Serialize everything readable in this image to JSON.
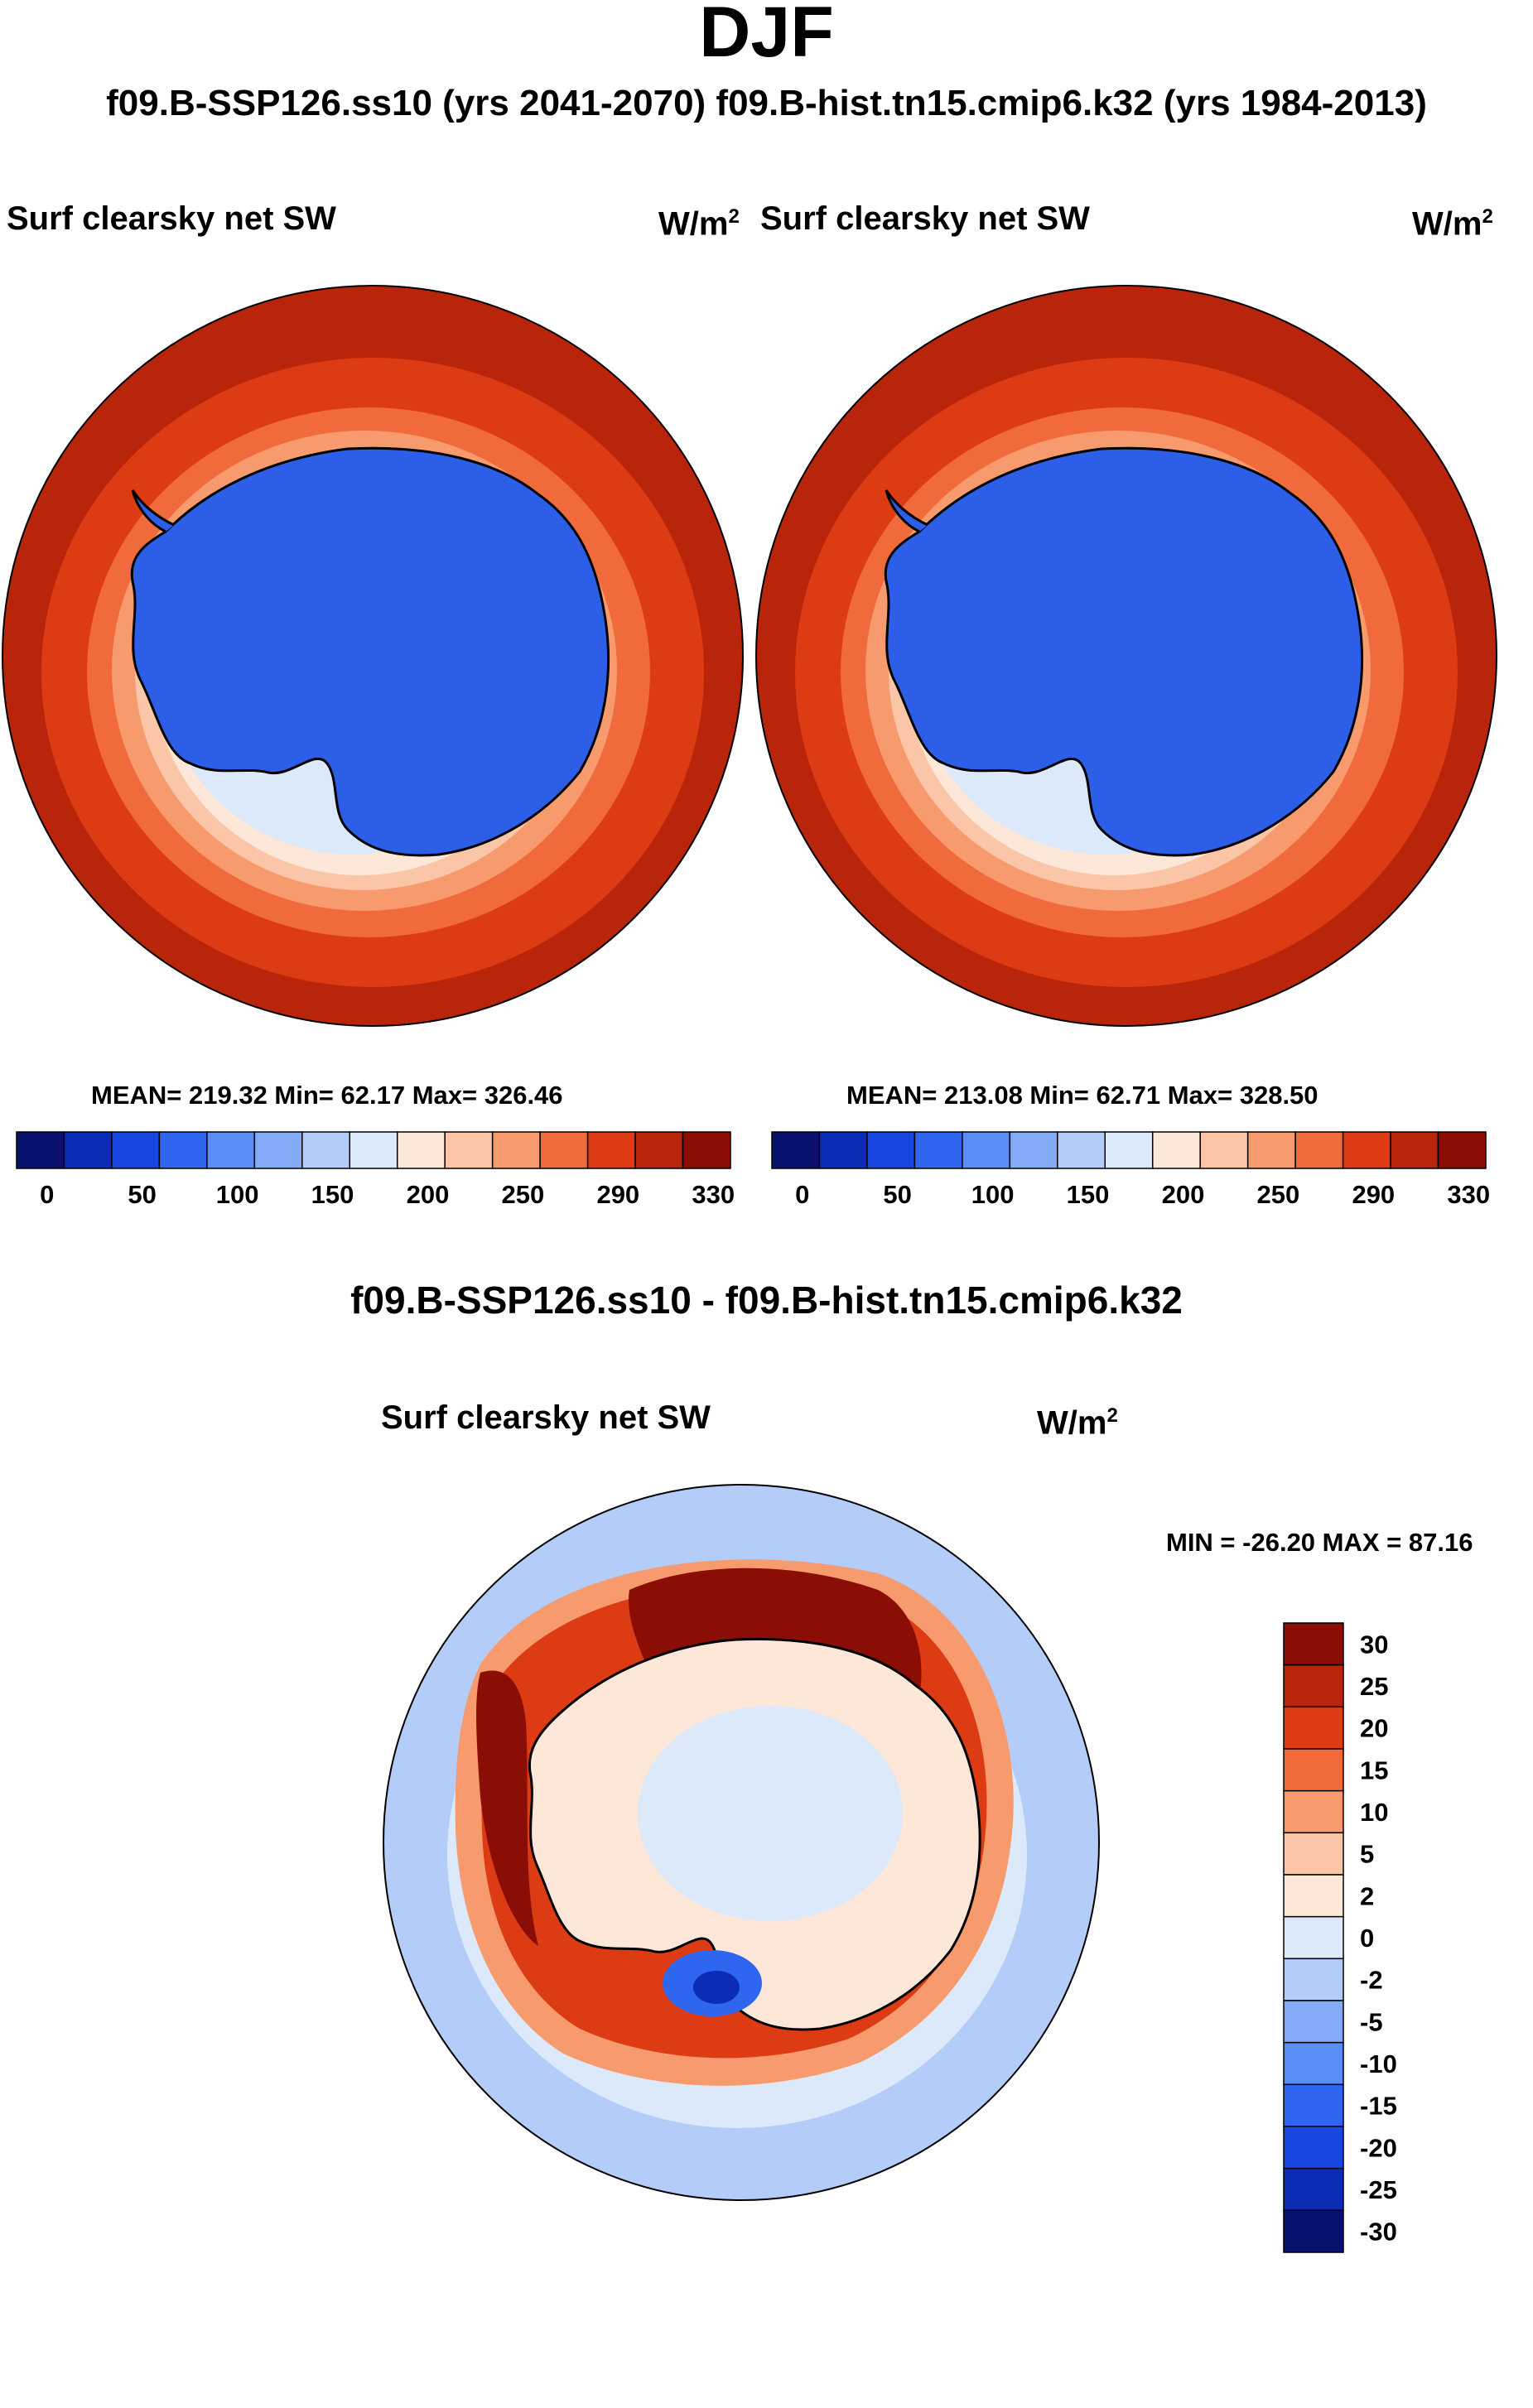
{
  "title": "DJF",
  "subtitle": "f09.B-SSP126.ss10 (yrs 2041-2070)  f09.B-hist.tn15.cmip6.k32 (yrs 1984-2013)",
  "diff_title": "f09.B-SSP126.ss10 - f09.B-hist.tn15.cmip6.k32",
  "panels": [
    {
      "label": "Surf clearsky net SW",
      "units": "W/m",
      "units_exp": "2",
      "stats": "MEAN= 219.32  Min=  62.17  Max= 326.46"
    },
    {
      "label": "Surf clearsky net SW",
      "units": "W/m",
      "units_exp": "2",
      "stats": "MEAN= 213.08  Min=  62.71  Max= 328.50"
    },
    {
      "label": "Surf clearsky net SW",
      "units": "W/m",
      "units_exp": "2",
      "stats": "MIN = -26.20 MAX =  87.16"
    }
  ],
  "colors": {
    "abs": [
      "#08126e",
      "#0b2cb4",
      "#1747e0",
      "#2f66f0",
      "#5a8df5",
      "#86abf6",
      "#b3cdf8",
      "#dce9fb",
      "#fde7d8",
      "#fbc6a8",
      "#f79a6e",
      "#f06a3b",
      "#dc3b14",
      "#b8250a",
      "#8a0d06"
    ],
    "diff": [
      "#08126e",
      "#0b2cb4",
      "#1747e0",
      "#2f66f0",
      "#5a8df5",
      "#86abf6",
      "#b3cdf8",
      "#dce9fb",
      "#fde7d8",
      "#fbc6a8",
      "#f79a6e",
      "#f06a3b",
      "#dc3b14",
      "#b8250a",
      "#8a0d06"
    ],
    "land_abs": "#2d5ee8",
    "ocean_abs": "#b8250a",
    "diff_bg": "#b3cdf8",
    "diff_land": "#eaf0fb"
  },
  "chart_data": [
    {
      "type": "heatmap",
      "title": "Surf clearsky net SW",
      "case": "f09.B-SSP126.ss10 (yrs 2041-2070)",
      "units": "W/m2",
      "projection": "south polar stereographic",
      "stats": {
        "mean": 219.32,
        "min": 62.17,
        "max": 326.46
      },
      "colorbar_levels": [
        0,
        50,
        100,
        150,
        200,
        250,
        290,
        330
      ],
      "colorbar_ticks": [
        "0",
        "50",
        "100",
        "150",
        "200",
        "250",
        "290",
        "330"
      ]
    },
    {
      "type": "heatmap",
      "title": "Surf clearsky net SW",
      "case": "f09.B-hist.tn15.cmip6.k32 (yrs 1984-2013)",
      "units": "W/m2",
      "projection": "south polar stereographic",
      "stats": {
        "mean": 213.08,
        "min": 62.71,
        "max": 328.5
      },
      "colorbar_levels": [
        0,
        50,
        100,
        150,
        200,
        250,
        290,
        330
      ],
      "colorbar_ticks": [
        "0",
        "50",
        "100",
        "150",
        "200",
        "250",
        "290",
        "330"
      ]
    },
    {
      "type": "heatmap",
      "title": "Surf clearsky net SW",
      "case": "f09.B-SSP126.ss10 - f09.B-hist.tn15.cmip6.k32",
      "units": "W/m2",
      "projection": "south polar stereographic",
      "stats": {
        "min": -26.2,
        "max": 87.16
      },
      "colorbar_levels": [
        30,
        25,
        20,
        15,
        10,
        5,
        2,
        0,
        -2,
        -5,
        -10,
        -15,
        -20,
        -25,
        -30
      ],
      "colorbar_ticks": [
        "30",
        "25",
        "20",
        "15",
        "10",
        "5",
        "2",
        "0",
        "-2",
        "-5",
        "-10",
        "-15",
        "-20",
        "-25",
        "-30"
      ]
    }
  ]
}
